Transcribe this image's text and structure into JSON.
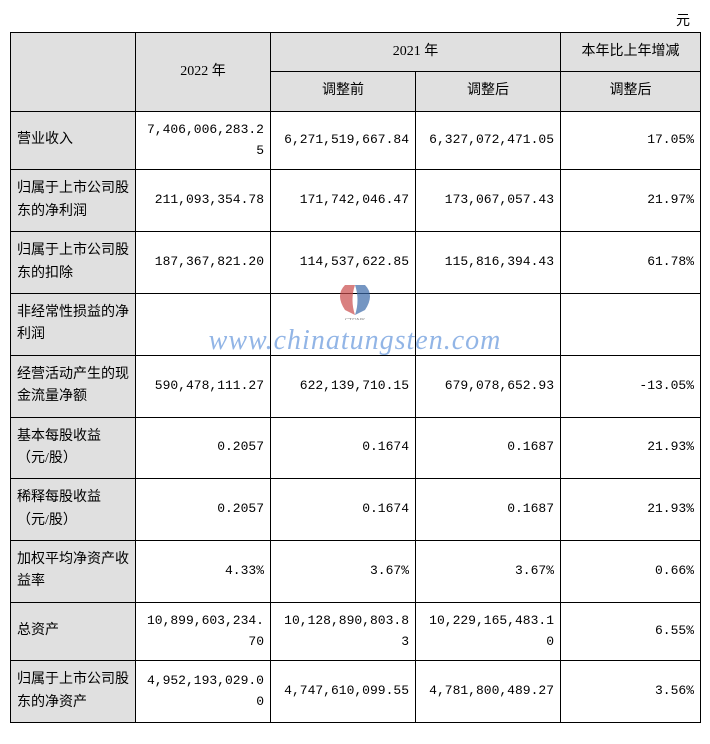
{
  "unit_label": "元",
  "headers": {
    "col_2022": "2022 年",
    "col_2021": "2021 年",
    "col_2021_pre": "调整前",
    "col_2021_post": "调整后",
    "col_change": "本年比上年增减",
    "col_change_sub": "调整后"
  },
  "rows": [
    {
      "label": "营业收入",
      "v2022": "7,406,006,283.25",
      "pre": "6,271,519,667.84",
      "post": "6,327,072,471.05",
      "chg": "17.05%"
    },
    {
      "label": "归属于上市公司股东的净利润",
      "v2022": "211,093,354.78",
      "pre": "171,742,046.47",
      "post": "173,067,057.43",
      "chg": "21.97%"
    },
    {
      "label": "归属于上市公司股东的扣除",
      "v2022": "187,367,821.20",
      "pre": "114,537,622.85",
      "post": "115,816,394.43",
      "chg": "61.78%"
    },
    {
      "label": "非经常性损益的净利润",
      "v2022": "",
      "pre": "",
      "post": "",
      "chg": ""
    },
    {
      "label": "经营活动产生的现金流量净额",
      "v2022": "590,478,111.27",
      "pre": "622,139,710.15",
      "post": "679,078,652.93",
      "chg": "-13.05%"
    },
    {
      "label": "基本每股收益（元/股）",
      "v2022": "0.2057",
      "pre": "0.1674",
      "post": "0.1687",
      "chg": "21.93%"
    },
    {
      "label": "稀释每股收益（元/股）",
      "v2022": "0.2057",
      "pre": "0.1674",
      "post": "0.1687",
      "chg": "21.93%"
    },
    {
      "label": "加权平均净资产收益率",
      "v2022": "4.33%",
      "pre": "3.67%",
      "post": "3.67%",
      "chg": "0.66%"
    },
    {
      "label": "总资产",
      "v2022": "10,899,603,234.70",
      "pre": "10,128,890,803.83",
      "post": "10,229,165,483.10",
      "chg": "6.55%"
    },
    {
      "label": "归属于上市公司股东的净资产",
      "v2022": "4,952,193,029.00",
      "pre": "4,747,610,099.55",
      "post": "4,781,800,489.27",
      "chg": "3.56%"
    }
  ],
  "watermark": {
    "url": "www.chinatungsten.com"
  },
  "colors": {
    "header_bg": "#e0e0e0",
    "border": "#000000",
    "text": "#000000",
    "watermark_text": "rgba(100,150,220,0.7)"
  }
}
